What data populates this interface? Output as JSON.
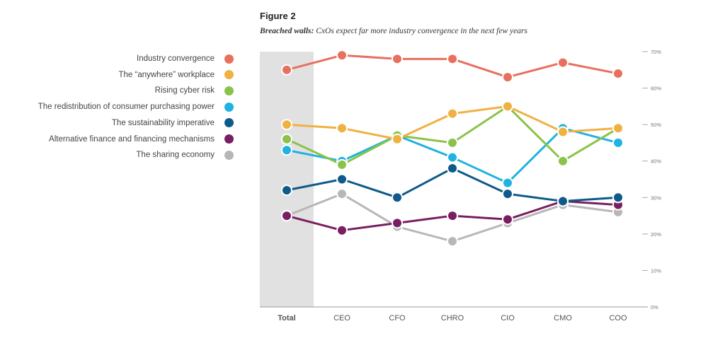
{
  "figure": {
    "label": "Figure 2",
    "title_bold": "Breached walls:",
    "title_rest": " CxOs expect far more industry convergence in the next few years"
  },
  "chart_data": {
    "type": "line",
    "categories": [
      "Total",
      "CEO",
      "CFO",
      "CHRO",
      "CIO",
      "CMO",
      "COO"
    ],
    "highlight_category": "Total",
    "ylim": [
      0,
      70
    ],
    "yticks": [
      0,
      10,
      20,
      30,
      40,
      50,
      60,
      70
    ],
    "ytick_suffix": "%",
    "grid": false,
    "legend_position": "left",
    "series": [
      {
        "name": "Industry convergence",
        "color": "#e8705e",
        "values": [
          65,
          69,
          68,
          68,
          63,
          67,
          64
        ]
      },
      {
        "name": "The “anywhere” workplace",
        "color": "#f0b143",
        "values": [
          50,
          49,
          46,
          53,
          55,
          48,
          49
        ]
      },
      {
        "name": "Rising cyber risk",
        "color": "#8bc34a",
        "values": [
          46,
          39,
          47,
          45,
          55,
          40,
          49
        ]
      },
      {
        "name": "The redistribution of consumer purchasing power",
        "color": "#1fb3e0",
        "values": [
          43,
          40,
          47,
          41,
          34,
          49,
          45
        ]
      },
      {
        "name": "The sustainability imperative",
        "color": "#0f5a8a",
        "values": [
          32,
          35,
          30,
          38,
          31,
          29,
          30
        ]
      },
      {
        "name": "Alternative finance and financing mechanisms",
        "color": "#7a1e62",
        "values": [
          25,
          21,
          23,
          25,
          24,
          29,
          28
        ]
      },
      {
        "name": "The sharing economy",
        "color": "#b7b7b7",
        "values": [
          25,
          31,
          22,
          18,
          23,
          28,
          26
        ]
      }
    ]
  }
}
